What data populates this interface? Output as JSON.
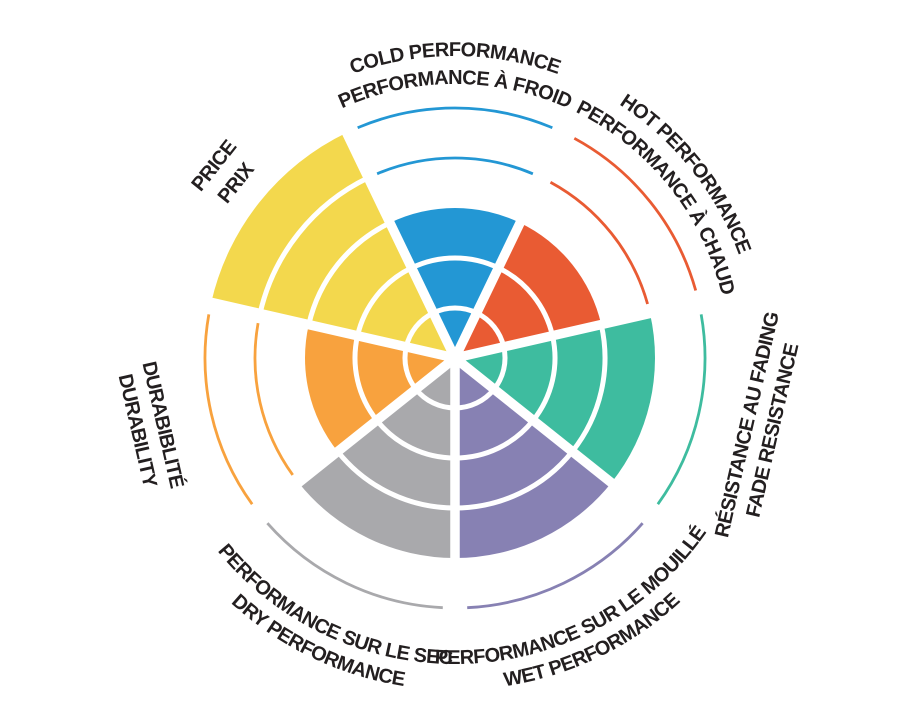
{
  "chart_data": {
    "type": "polar-sector-rating",
    "title": "",
    "scale": {
      "min": 0,
      "max": 5,
      "rings": [
        1,
        2,
        3,
        4,
        5
      ]
    },
    "text_color": "#231F20",
    "background": "#FFFFFF",
    "legend_position": "around",
    "categories": [
      {
        "id": "cold-performance",
        "label_en": "COLD PERFORMANCE",
        "label_fr": "PERFORMANCE À FROID",
        "value": 3,
        "color": "#2397D4",
        "label_style": "arc-top"
      },
      {
        "id": "hot-performance",
        "label_en": "HOT PERFORMANCE",
        "label_fr": "PERFORMANCE À CHAUD",
        "value": 3,
        "color": "#E95B33",
        "label_style": "arc-top"
      },
      {
        "id": "fade-resistance",
        "label_en": "FADE RESISTANCE",
        "label_fr": "RÉSISTANCE AU FADING",
        "value": 4,
        "color": "#3EBC9F",
        "label_style": "straight-bottom"
      },
      {
        "id": "wet-performance",
        "label_en": "WET PERFORMANCE",
        "label_fr": "PERFORMANCE SUR LE MOUILLÉ",
        "value": 4,
        "color": "#8781B3",
        "label_style": "arc-bottom"
      },
      {
        "id": "dry-performance",
        "label_en": "DRY PERFORMANCE",
        "label_fr": "PERFORMANCE SUR LE SEC",
        "value": 4,
        "color": "#A9A9AC",
        "label_style": "arc-bottom"
      },
      {
        "id": "durability",
        "label_en": "DURABILITY",
        "label_fr": "DURABIBLITÉ",
        "value": 3,
        "color": "#F8A23E",
        "label_style": "straight-bottom"
      },
      {
        "id": "price",
        "label_en": "PRICE",
        "label_fr": "PRIX",
        "value": 5,
        "color": "#F3D84D",
        "label_style": "straight-top"
      }
    ]
  }
}
